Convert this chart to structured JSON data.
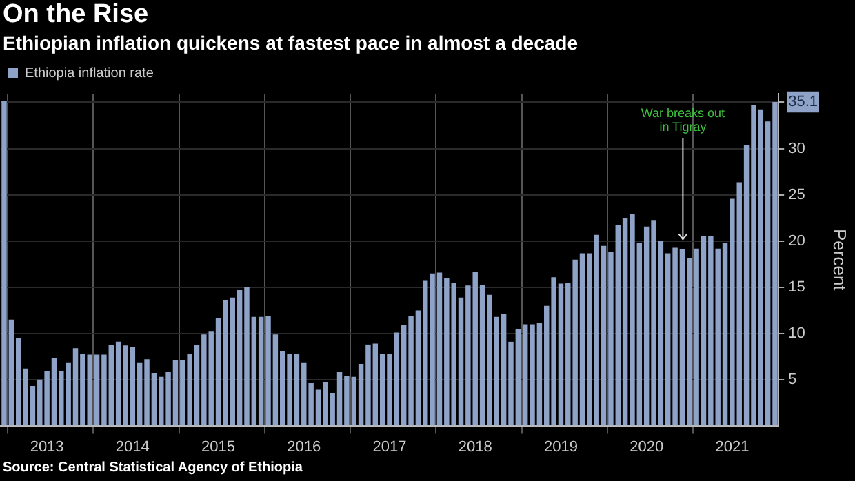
{
  "chart_data": {
    "type": "bar",
    "title": "On the Rise",
    "subtitle": "Ethiopian inflation quickens at fastest pace in almost a decade",
    "ylabel": "Percent",
    "categories": [
      null,
      null,
      null,
      null,
      null,
      null,
      "2013",
      null,
      null,
      null,
      null,
      null,
      null,
      null,
      null,
      null,
      null,
      null,
      "2014",
      null,
      null,
      null,
      null,
      null,
      null,
      null,
      null,
      null,
      null,
      null,
      "2015",
      null,
      null,
      null,
      null,
      null,
      null,
      null,
      null,
      null,
      null,
      null,
      "2016",
      null,
      null,
      null,
      null,
      null,
      null,
      null,
      null,
      null,
      null,
      null,
      "2017",
      null,
      null,
      null,
      null,
      null,
      null,
      null,
      null,
      null,
      null,
      null,
      "2018",
      null,
      null,
      null,
      null,
      null,
      null,
      null,
      null,
      null,
      null,
      null,
      "2019",
      null,
      null,
      null,
      null,
      null,
      null,
      null,
      null,
      null,
      null,
      null,
      "2020",
      null,
      null,
      null,
      null,
      null,
      null,
      null,
      null,
      null,
      null,
      null,
      "2021",
      null,
      null,
      null,
      null,
      null,
      null
    ],
    "series": [
      {
        "name": "Ethiopia inflation rate",
        "color": "#8fa3c8",
        "values": [
          35.2,
          11.5,
          9.5,
          6.2,
          4.3,
          5.0,
          5.9,
          7.3,
          5.9,
          6.8,
          8.4,
          7.8,
          7.7,
          7.7,
          7.7,
          8.8,
          9.1,
          8.7,
          8.5,
          6.8,
          7.2,
          5.7,
          5.3,
          5.8,
          7.1,
          7.1,
          7.8,
          8.8,
          9.9,
          10.2,
          11.7,
          13.6,
          13.9,
          14.7,
          15.0,
          11.8,
          11.8,
          11.9,
          9.9,
          8.1,
          7.8,
          7.8,
          6.8,
          4.6,
          3.9,
          4.7,
          3.5,
          5.8,
          5.4,
          5.3,
          6.7,
          8.8,
          8.9,
          7.8,
          7.8,
          10.1,
          10.9,
          11.9,
          12.5,
          15.7,
          16.5,
          16.6,
          16.0,
          15.5,
          13.9,
          15.2,
          16.7,
          15.3,
          14.2,
          11.8,
          12.1,
          9.1,
          10.5,
          11.0,
          11.0,
          11.1,
          13.0,
          16.1,
          15.4,
          15.5,
          18.0,
          18.7,
          18.7,
          20.7,
          19.5,
          18.8,
          21.8,
          22.5,
          23.0,
          19.8,
          21.6,
          22.3,
          20.0,
          18.7,
          19.3,
          19.1,
          18.2,
          19.2,
          20.6,
          20.6,
          19.2,
          19.8,
          24.6,
          26.4,
          30.4,
          34.8,
          34.3,
          33.0,
          35.1
        ]
      }
    ],
    "ylim": [
      0,
      36
    ],
    "yticks": [
      5,
      10,
      15,
      20,
      25,
      30,
      {
        "value": 35.1,
        "label": "35.1"
      }
    ],
    "grid": true,
    "legend": "top left",
    "annotations": [
      "War breaks out in Tigray",
      "Source: Central Statistical Agency of Ethiopia"
    ]
  }
}
